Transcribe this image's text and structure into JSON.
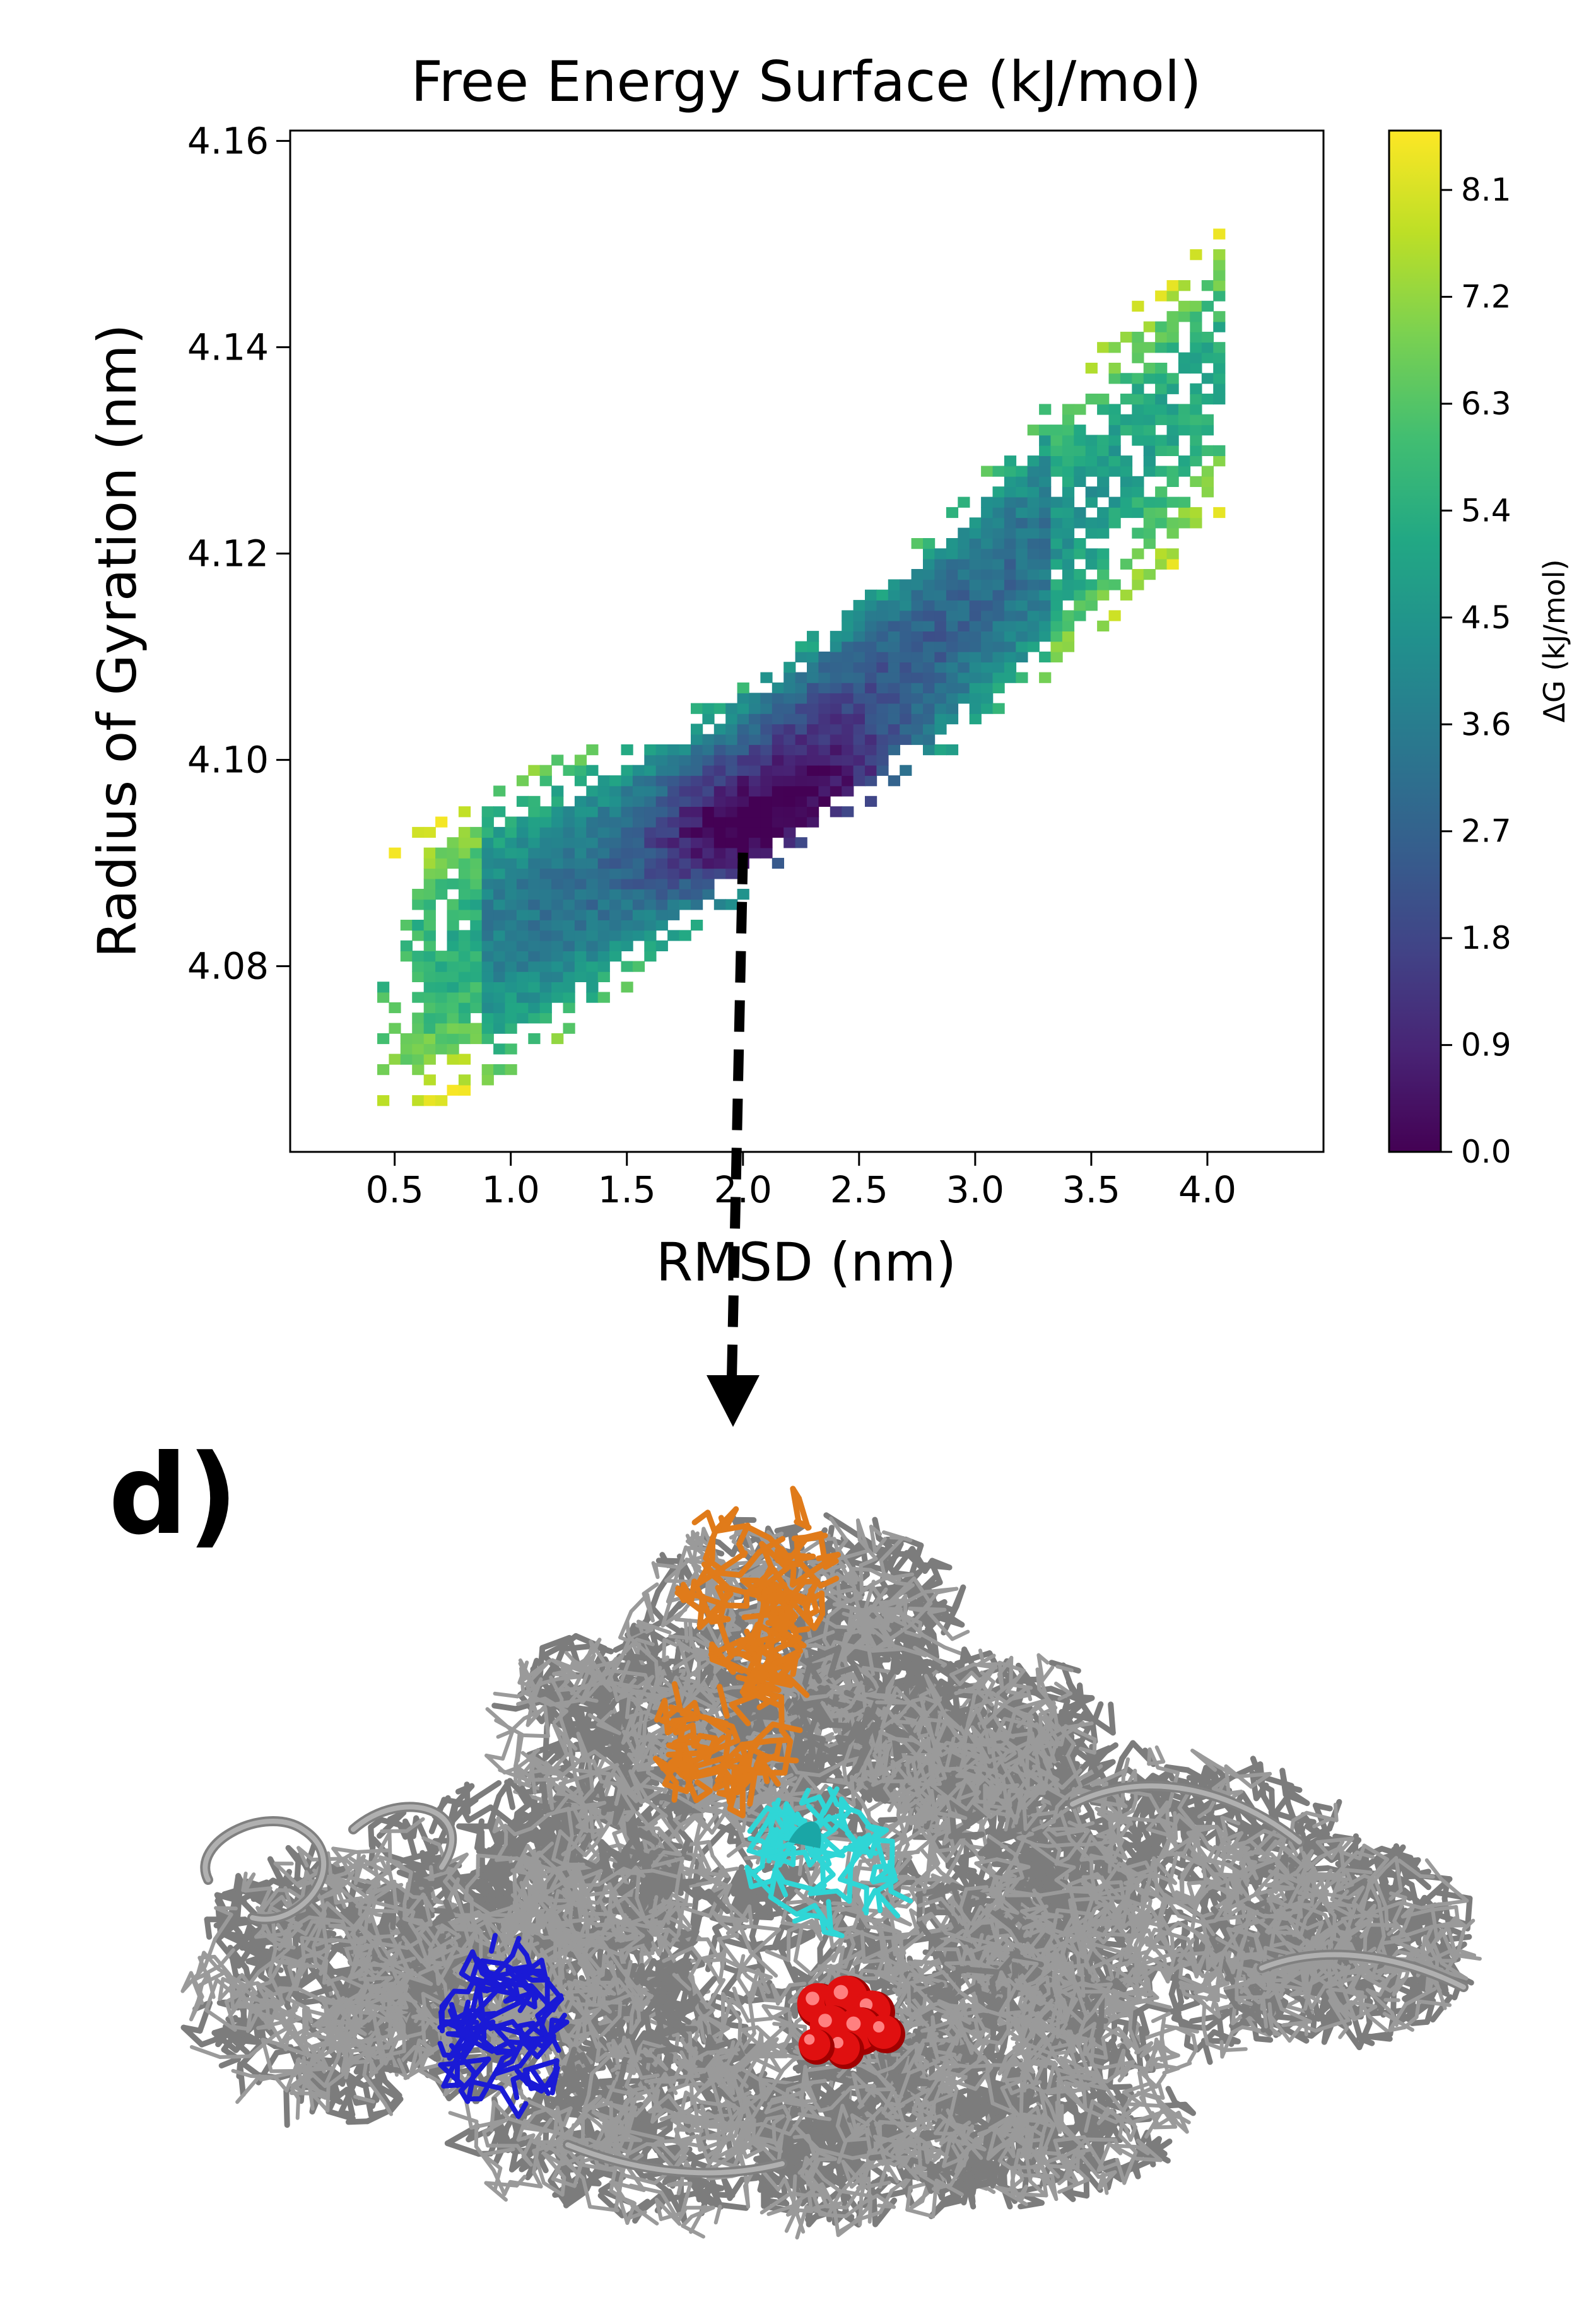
{
  "chart_data": {
    "type": "heatmap",
    "title": "Free Energy Surface (kJ/mol)",
    "xlabel": "RMSD (nm)",
    "ylabel": "Radius of Gyration (nm)",
    "xlim": [
      0.05,
      4.5
    ],
    "ylim": [
      4.062,
      4.161
    ],
    "xticks": [
      "0.5",
      "1.0",
      "1.5",
      "2.0",
      "2.5",
      "3.0",
      "3.5",
      "4.0"
    ],
    "yticks": [
      "4.08",
      "4.10",
      "4.12",
      "4.14",
      "4.16"
    ],
    "colorbar": {
      "label": "ΔG (kJ/mol)",
      "range": [
        0.0,
        8.6
      ],
      "ticks": [
        "0.0",
        "0.9",
        "1.8",
        "2.7",
        "3.6",
        "4.5",
        "5.4",
        "6.3",
        "7.2",
        "8.1"
      ],
      "colormap": "viridis"
    },
    "minima": [
      {
        "rmsd": 2.0,
        "rg": 4.092,
        "dG": 0.5
      },
      {
        "rmsd": 2.55,
        "rg": 4.095,
        "dG": 0.3
      }
    ],
    "grid": false
  },
  "panel": {
    "label": "d)",
    "arrow_from": {
      "rmsd": 2.0,
      "rg": 4.091
    }
  },
  "colors": {
    "protein": "#9a9a9a",
    "orange_region": "#e07b1a",
    "cyan_region": "#2fd6d6",
    "blue_region": "#1a1ad6",
    "red_ligand": "#e01010"
  }
}
